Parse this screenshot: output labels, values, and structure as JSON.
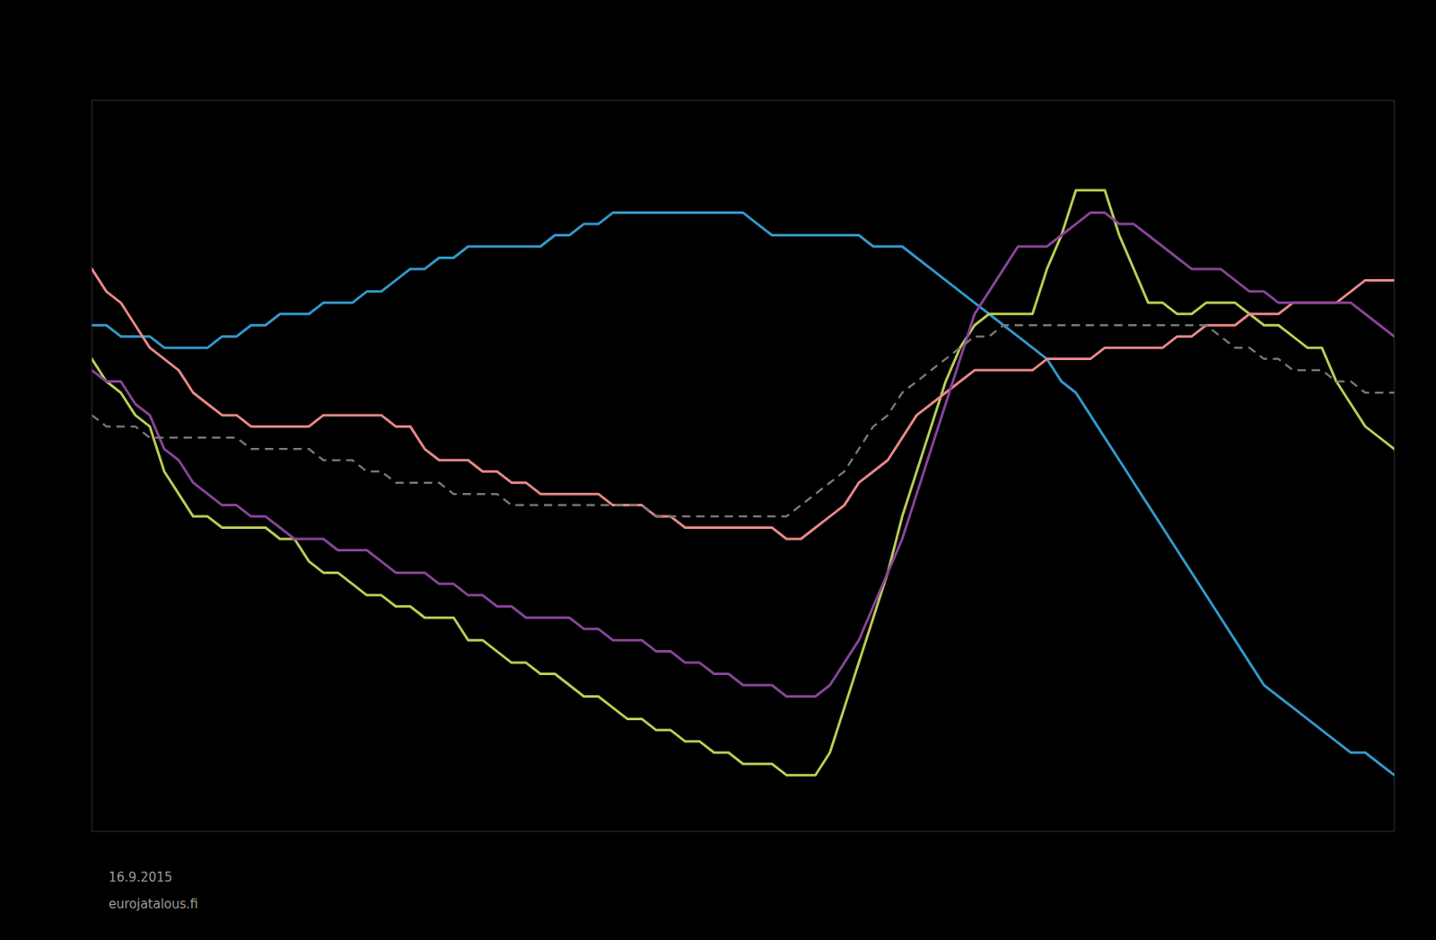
{
  "chart_data": {
    "type": "line",
    "x": [
      0,
      1,
      2,
      3,
      4,
      5,
      6,
      7,
      8,
      9,
      10,
      11,
      12,
      13,
      14,
      15,
      16,
      17,
      18,
      19,
      20,
      21,
      22,
      23,
      24,
      25,
      26,
      27,
      28,
      29,
      30,
      31,
      32,
      33,
      34,
      35,
      36,
      37,
      38,
      39,
      40,
      41,
      42,
      43,
      44,
      45,
      46,
      47,
      48,
      49,
      50,
      51,
      52,
      53,
      54,
      55,
      56,
      57,
      58,
      59,
      60,
      61,
      62,
      63,
      64,
      65,
      66,
      67,
      68,
      69,
      70,
      71,
      72,
      73,
      74,
      75,
      76,
      77,
      78,
      79,
      80,
      81,
      82,
      83,
      84,
      85,
      86,
      87,
      88,
      89,
      90
    ],
    "series": [
      {
        "color": "#3399CC",
        "line_style": "solid",
        "values": [
          55,
          55,
          54,
          54,
          54,
          53,
          53,
          53,
          53,
          54,
          54,
          55,
          55,
          56,
          56,
          56,
          57,
          57,
          57,
          58,
          58,
          59,
          60,
          60,
          61,
          61,
          62,
          62,
          62,
          62,
          62,
          62,
          63,
          63,
          64,
          64,
          65,
          65,
          65,
          65,
          65,
          65,
          65,
          65,
          65,
          65,
          64,
          63,
          63,
          63,
          63,
          63,
          63,
          63,
          62,
          62,
          62,
          61,
          60,
          59,
          58,
          57,
          56,
          55,
          54,
          53,
          52,
          50,
          49,
          47,
          45,
          43,
          41,
          39,
          37,
          35,
          33,
          31,
          29,
          27,
          25,
          23,
          22,
          21,
          20,
          19,
          18,
          17,
          17,
          16,
          15
        ]
      },
      {
        "color": "#BBCC55",
        "line_style": "solid",
        "values": [
          52,
          50,
          49,
          47,
          46,
          42,
          40,
          38,
          38,
          37,
          37,
          37,
          37,
          36,
          36,
          34,
          33,
          33,
          32,
          31,
          31,
          30,
          30,
          29,
          29,
          29,
          27,
          27,
          26,
          25,
          25,
          24,
          24,
          23,
          22,
          22,
          21,
          20,
          20,
          19,
          19,
          18,
          18,
          17,
          17,
          16,
          16,
          16,
          15,
          15,
          15,
          17,
          21,
          25,
          29,
          33,
          38,
          42,
          46,
          50,
          53,
          55,
          56,
          56,
          56,
          56,
          60,
          63,
          67,
          67,
          67,
          63,
          60,
          57,
          57,
          56,
          56,
          57,
          57,
          57,
          56,
          55,
          55,
          54,
          53,
          53,
          50,
          48,
          46,
          45,
          44
        ]
      },
      {
        "color": "#E88888",
        "line_style": "solid",
        "values": [
          60,
          58,
          57,
          55,
          53,
          52,
          51,
          49,
          48,
          47,
          47,
          46,
          46,
          46,
          46,
          46,
          47,
          47,
          47,
          47,
          47,
          46,
          46,
          44,
          43,
          43,
          43,
          42,
          42,
          41,
          41,
          40,
          40,
          40,
          40,
          40,
          39,
          39,
          39,
          38,
          38,
          37,
          37,
          37,
          37,
          37,
          37,
          37,
          36,
          36,
          37,
          38,
          39,
          41,
          42,
          43,
          45,
          47,
          48,
          49,
          50,
          51,
          51,
          51,
          51,
          51,
          52,
          52,
          52,
          52,
          53,
          53,
          53,
          53,
          53,
          54,
          54,
          55,
          55,
          55,
          56,
          56,
          56,
          57,
          57,
          57,
          57,
          58,
          59,
          59,
          59
        ]
      },
      {
        "color": "#884499",
        "line_style": "solid",
        "values": [
          51,
          50,
          50,
          48,
          47,
          44,
          43,
          41,
          40,
          39,
          39,
          38,
          38,
          37,
          36,
          36,
          36,
          35,
          35,
          35,
          34,
          33,
          33,
          33,
          32,
          32,
          31,
          31,
          30,
          30,
          29,
          29,
          29,
          29,
          28,
          28,
          27,
          27,
          27,
          26,
          26,
          25,
          25,
          24,
          24,
          23,
          23,
          23,
          22,
          22,
          22,
          23,
          25,
          27,
          30,
          33,
          36,
          40,
          44,
          48,
          52,
          56,
          58,
          60,
          62,
          62,
          62,
          63,
          64,
          65,
          65,
          64,
          64,
          63,
          62,
          61,
          60,
          60,
          60,
          59,
          58,
          58,
          57,
          57,
          57,
          57,
          57,
          57,
          56,
          55,
          54
        ]
      },
      {
        "color": "#777777",
        "line_style": "dashed",
        "values": [
          47,
          46,
          46,
          46,
          45,
          45,
          45,
          45,
          45,
          45,
          45,
          44,
          44,
          44,
          44,
          44,
          43,
          43,
          43,
          42,
          42,
          41,
          41,
          41,
          41,
          40,
          40,
          40,
          40,
          39,
          39,
          39,
          39,
          39,
          39,
          39,
          39,
          39,
          39,
          38,
          38,
          38,
          38,
          38,
          38,
          38,
          38,
          38,
          38,
          39,
          40,
          41,
          42,
          44,
          46,
          47,
          49,
          50,
          51,
          52,
          53,
          54,
          54,
          55,
          55,
          55,
          55,
          55,
          55,
          55,
          55,
          55,
          55,
          55,
          55,
          55,
          55,
          55,
          54,
          53,
          53,
          52,
          52,
          51,
          51,
          51,
          50,
          50,
          49,
          49,
          49
        ]
      }
    ],
    "xlim": [
      0,
      90
    ],
    "ylim": [
      10,
      75
    ],
    "tick_labels": false,
    "grid": false,
    "annotations": [
      "16.9.2015",
      "eurojatalous.fi"
    ]
  }
}
